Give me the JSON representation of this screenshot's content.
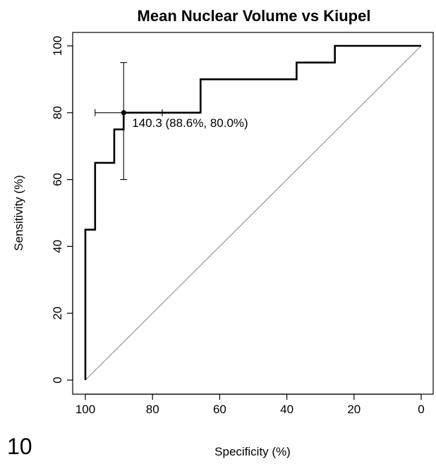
{
  "chart_data": {
    "type": "line",
    "title": "Mean Nuclear Volume vs Kiupel",
    "xlabel": "Specificity (%)",
    "ylabel": "Sensitivity (%)",
    "xlim": [
      100,
      0
    ],
    "ylim": [
      0,
      100
    ],
    "x_reversed": true,
    "x_ticks": [
      100,
      80,
      60,
      40,
      20,
      0
    ],
    "y_ticks": [
      0,
      20,
      40,
      60,
      80,
      100
    ],
    "y_tick_labels_rotated": true,
    "grid": false,
    "series": [
      {
        "style": "step",
        "color": "#000000",
        "points": [
          [
            100,
            0
          ],
          [
            100,
            45
          ],
          [
            97.1,
            45
          ],
          [
            97.1,
            65
          ],
          [
            91.4,
            65
          ],
          [
            91.4,
            75
          ],
          [
            88.6,
            75
          ],
          [
            88.6,
            80
          ],
          [
            65.7,
            80
          ],
          [
            65.7,
            90
          ],
          [
            37.1,
            90
          ],
          [
            37.1,
            95
          ],
          [
            25.7,
            95
          ],
          [
            25.7,
            100
          ],
          [
            0,
            100
          ]
        ]
      },
      {
        "style": "diagonal",
        "color": "#999999",
        "points": [
          [
            100,
            0
          ],
          [
            0,
            100
          ]
        ]
      }
    ],
    "annotations": [
      {
        "text": "140.3 (88.6%, 80.0%)",
        "point": [
          88.6,
          80.0
        ],
        "ci_specificity": [
          97.1,
          77.1
        ],
        "ci_sensitivity": [
          60,
          95
        ]
      }
    ],
    "panel_label": "10"
  }
}
